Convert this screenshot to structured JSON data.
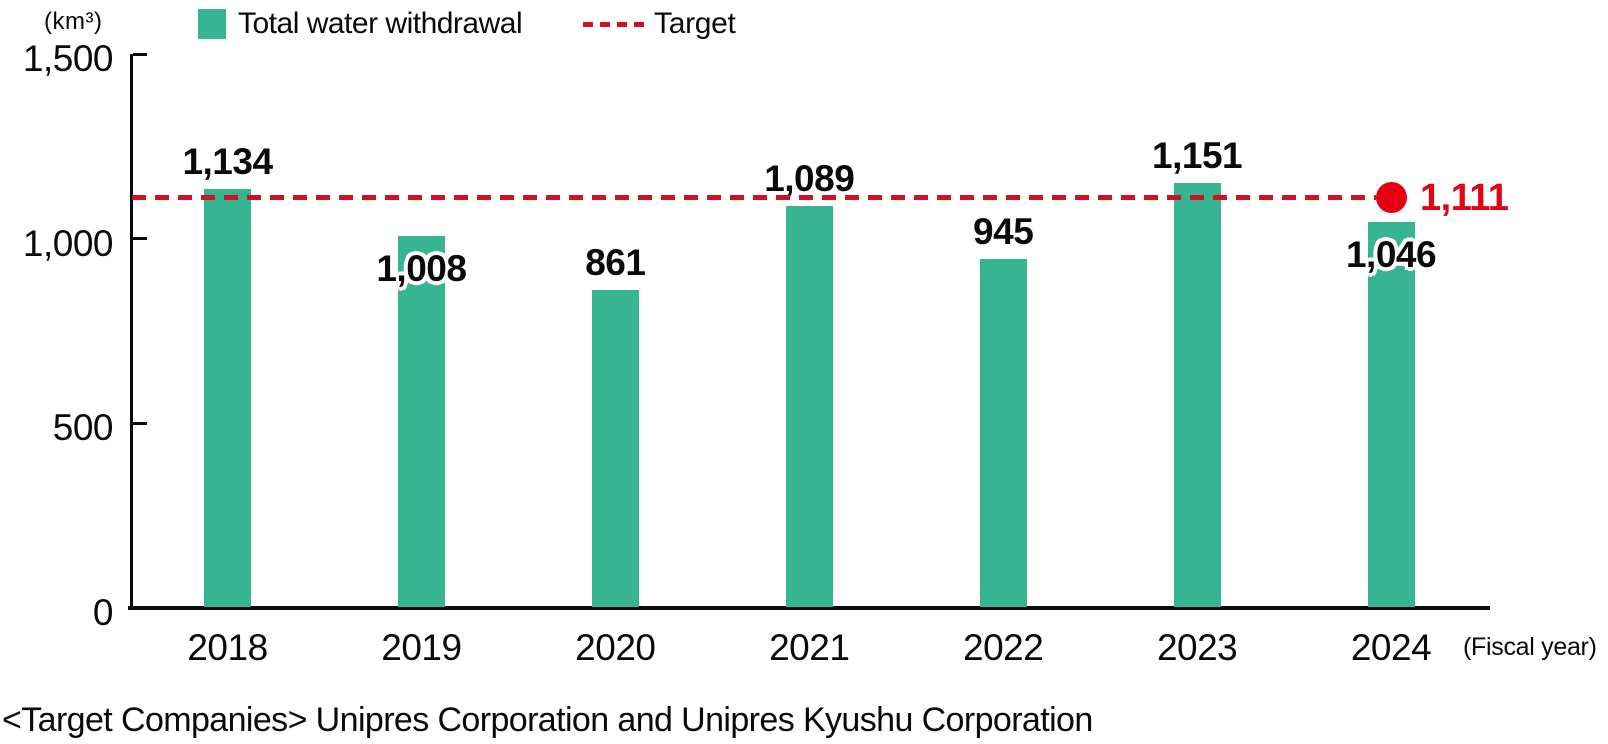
{
  "unit_label": "(km³)",
  "legend": {
    "series_label": "Total water withdrawal",
    "target_label": "Target"
  },
  "colors": {
    "bar": "#37b593",
    "target_line": "#cf1126",
    "target_point": "#e60012",
    "axis": "#0a0a0a",
    "text": "#0a0a0a"
  },
  "x_axis_note": "(Fiscal year)",
  "footer": "<Target Companies> Unipres Corporation and Unipres Kyushu Corporation",
  "chart_data": {
    "type": "bar",
    "title": "",
    "xlabel": "(Fiscal year)",
    "ylabel": "(km³)",
    "categories": [
      "2018",
      "2019",
      "2020",
      "2021",
      "2022",
      "2023",
      "2024"
    ],
    "values": [
      1134,
      1008,
      861,
      1089,
      945,
      1151,
      1046
    ],
    "value_labels": [
      "1,134",
      "1,008",
      "861",
      "1,089",
      "945",
      "1,151",
      "1,046"
    ],
    "series_name": "Total water withdrawal",
    "target": {
      "value": 1111,
      "label": "1,111",
      "marker_category": "2024"
    },
    "ylim": [
      0,
      1500
    ],
    "yticks": [
      0,
      500,
      1000,
      1500
    ],
    "ytick_labels": [
      "0",
      "500",
      "1,000",
      "1,500"
    ],
    "grid": false,
    "legend_position": "top",
    "labels_inside_bar": [
      "2019",
      "2024"
    ]
  }
}
